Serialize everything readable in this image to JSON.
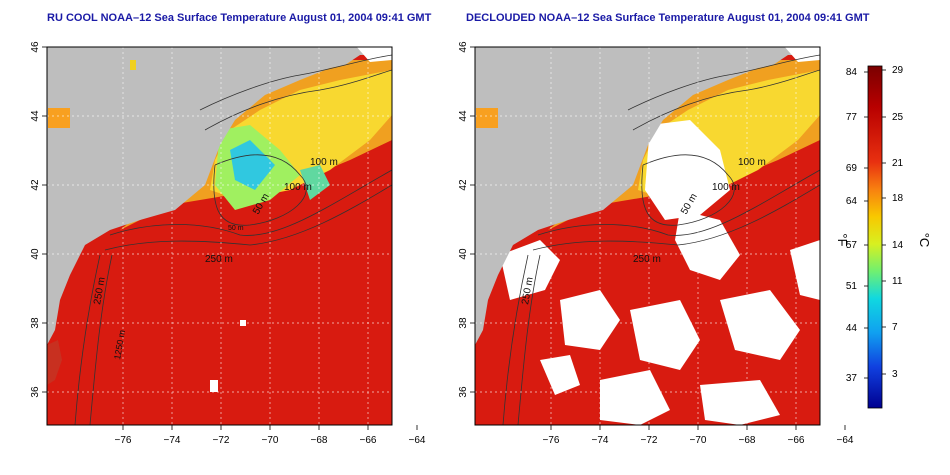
{
  "panels": [
    {
      "title": "RU COOL NOAA–12 Sea Surface Temperature August 01, 2004 09:41 GMT",
      "contour_labels": [
        "100 m",
        "100 m",
        "50 m",
        "250 m",
        "250 m",
        "50 m",
        "1250 m"
      ]
    },
    {
      "title": "DECLOUDED NOAA–12 Sea Surface Temperature August 01, 2004 09:41 GMT",
      "contour_labels": [
        "100 m",
        "100 m",
        "50 m",
        "250 m",
        "250 m"
      ]
    }
  ],
  "axes": {
    "lon_ticks": [
      "−76",
      "−74",
      "−72",
      "−70",
      "−68",
      "−66",
      "−64"
    ],
    "lat_ticks": [
      "46",
      "44",
      "42",
      "40",
      "38",
      "36"
    ]
  },
  "colorbar": {
    "fahrenheit_ticks": [
      "84",
      "77",
      "69",
      "64",
      "57",
      "51",
      "44",
      "37"
    ],
    "celsius_ticks": [
      "29",
      "25",
      "21",
      "18",
      "14",
      "11",
      "7",
      "3"
    ],
    "fahrenheit_label": "°F",
    "celsius_label": "°C"
  },
  "colors": {
    "land": "#bebebe",
    "warm_water": "#d81b10",
    "cloud": "#ffffff",
    "title_text": "#1a1aa6"
  }
}
